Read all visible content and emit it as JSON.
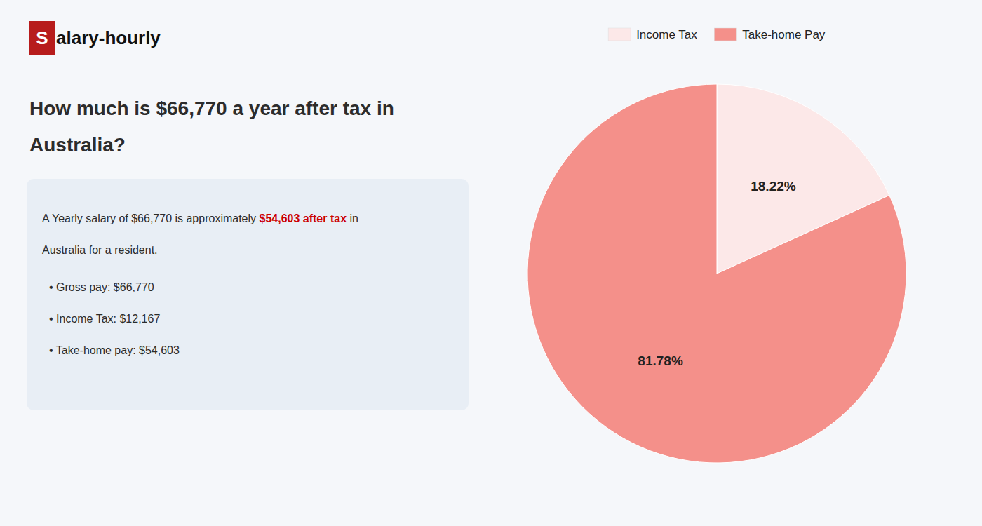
{
  "chart_data": {
    "type": "pie",
    "title": [
      "How much is $66,770 a year after tax in",
      "Australia?"
    ],
    "annotations": [
      {
        "text": "S"
      },
      {
        "text": "alary-hourly"
      },
      {
        "text": "A Yearly salary of $66,770 is approximately "
      },
      {
        "text": "$54,603 after tax",
        "color": "#cc0000"
      },
      {
        "text": " in"
      },
      {
        "text": "Australia for a resident."
      },
      {
        "text": "• Gross pay: $66,770"
      },
      {
        "text": "• Income Tax: $12,167"
      },
      {
        "text": "• Take-home pay: $54,603"
      }
    ],
    "categories": [
      "Income Tax",
      "Take-home Pay"
    ],
    "values": [
      18.22,
      81.78
    ],
    "value_labels": [
      "18.22%",
      "81.78%"
    ],
    "colors": [
      "#fce8e8",
      "#f4908a"
    ],
    "data_labels": true,
    "legend": "top"
  }
}
